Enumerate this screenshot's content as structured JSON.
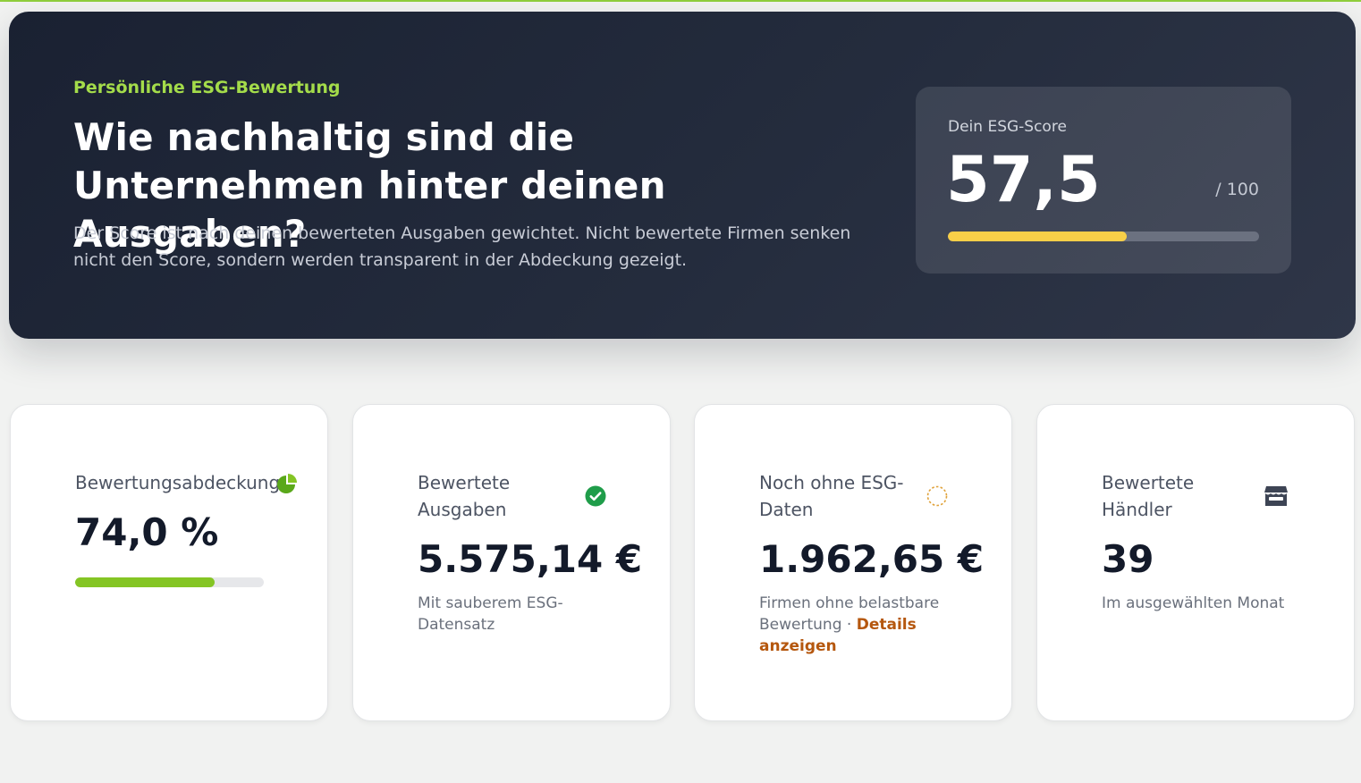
{
  "hero": {
    "eyebrow": "Persönliche ESG-Bewertung",
    "title": "Wie nachhaltig sind die Unternehmen hinter deinen Ausgaben?",
    "description": "Der Score ist nach deinen bewerteten Ausgaben gewichtet. Nicht bewertete Firmen senken nicht den Score, sondern werden transparent in der Abdeckung gezeigt."
  },
  "score": {
    "label": "Dein ESG-Score",
    "value": "57,5",
    "max": "/ 100",
    "progress_fraction": 0.575,
    "bar_color": "#f8cf48"
  },
  "cards": {
    "coverage": {
      "label": "Bewertungsabdeckung",
      "value": "74,0 %",
      "progress_fraction": 0.74,
      "icon": "pie-chart-icon",
      "bar_color": "#84c524"
    },
    "rated_spend": {
      "label": "Bewertete Ausgaben",
      "value": "5.575,14 €",
      "sub": "Mit sauberem ESG-Datensatz",
      "icon": "check-circle-icon"
    },
    "unrated": {
      "label": "Noch ohne ESG-Daten",
      "value": "1.962,65 €",
      "sub": "Firmen ohne belastbare Bewertung · ",
      "link": "Details anzeigen",
      "icon": "dashed-circle-icon"
    },
    "merchants": {
      "label": "Bewertete Händler",
      "value": "39",
      "sub": "Im ausgewählten Monat",
      "icon": "store-icon"
    }
  },
  "colors": {
    "accent_green": "#a4dc4a",
    "check_green": "#1f9d4a",
    "link_orange": "#b5570e",
    "pending_amber": "#e0a23a"
  }
}
